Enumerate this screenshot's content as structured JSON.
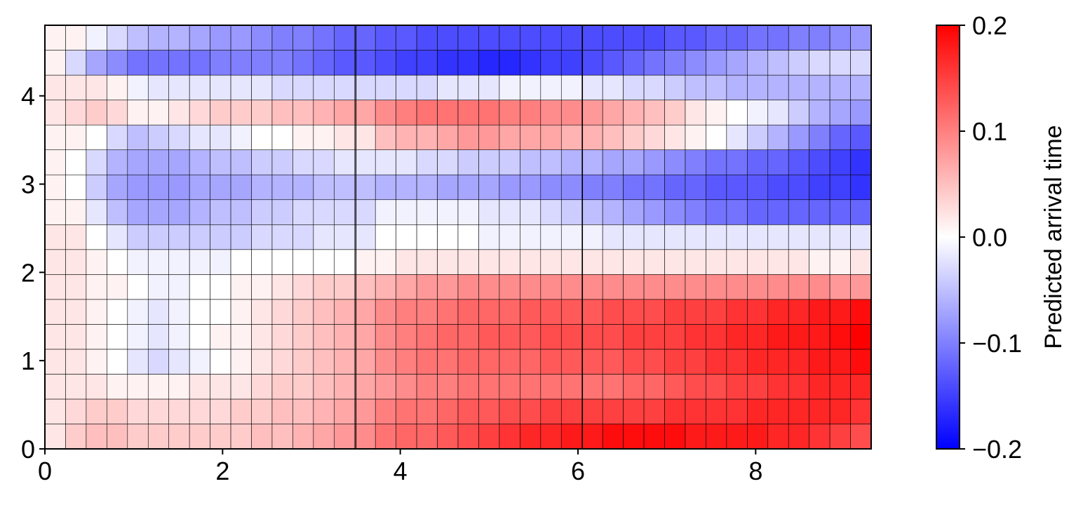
{
  "chart_data": {
    "type": "heatmap",
    "title": "",
    "xlabel": "",
    "ylabel": "",
    "xlim": [
      0,
      9.3
    ],
    "ylim": [
      0,
      4.8
    ],
    "xticks": [
      0,
      2,
      4,
      6,
      8
    ],
    "xtick_labels": [
      "0",
      "2",
      "4",
      "6",
      "8"
    ],
    "yticks": [
      0,
      1,
      2,
      3,
      4
    ],
    "ytick_labels": [
      "0",
      "1",
      "2",
      "3",
      "4"
    ],
    "ncols": 40,
    "nrows": 17,
    "grid": true,
    "panel_dividers_x": [
      3.5,
      6.05
    ],
    "colormap": "bwr",
    "colorbar": {
      "label": "Predicted arrival time",
      "min": -0.2,
      "max": 0.2,
      "ticks": [
        -0.2,
        -0.1,
        0.0,
        0.1,
        0.2
      ],
      "tick_labels": [
        "−0.2",
        "−0.1",
        "0.0",
        "0.1",
        "0.2"
      ],
      "color_low": "#0000ff",
      "color_mid": "#ffffff",
      "color_high": "#ff0000"
    },
    "values": [
      [
        0.02,
        0.04,
        0.05,
        0.05,
        0.04,
        0.04,
        0.04,
        0.04,
        0.04,
        0.04,
        0.05,
        0.05,
        0.06,
        0.07,
        0.08,
        0.09,
        0.11,
        0.12,
        0.12,
        0.13,
        0.14,
        0.15,
        0.16,
        0.17,
        0.17,
        0.18,
        0.18,
        0.19,
        0.19,
        0.19,
        0.19,
        0.18,
        0.18,
        0.18,
        0.18,
        0.17,
        0.17,
        0.16,
        0.15,
        0.14
      ],
      [
        0.02,
        0.03,
        0.04,
        0.04,
        0.03,
        0.03,
        0.03,
        0.03,
        0.03,
        0.04,
        0.04,
        0.05,
        0.05,
        0.06,
        0.07,
        0.08,
        0.1,
        0.11,
        0.11,
        0.12,
        0.13,
        0.13,
        0.14,
        0.14,
        0.15,
        0.15,
        0.15,
        0.15,
        0.15,
        0.15,
        0.16,
        0.16,
        0.16,
        0.16,
        0.17,
        0.17,
        0.17,
        0.17,
        0.17,
        0.16
      ],
      [
        0.02,
        0.02,
        0.02,
        0.01,
        0.01,
        0.01,
        0.01,
        0.02,
        0.02,
        0.02,
        0.03,
        0.04,
        0.04,
        0.05,
        0.06,
        0.07,
        0.08,
        0.09,
        0.1,
        0.1,
        0.11,
        0.11,
        0.11,
        0.11,
        0.11,
        0.11,
        0.11,
        0.11,
        0.12,
        0.12,
        0.13,
        0.14,
        0.14,
        0.15,
        0.15,
        0.16,
        0.16,
        0.17,
        0.17,
        0.17
      ],
      [
        0.02,
        0.02,
        0.01,
        0.0,
        -0.02,
        -0.03,
        -0.02,
        -0.01,
        0.0,
        0.01,
        0.02,
        0.03,
        0.04,
        0.05,
        0.06,
        0.07,
        0.09,
        0.1,
        0.11,
        0.11,
        0.12,
        0.12,
        0.12,
        0.12,
        0.13,
        0.13,
        0.13,
        0.13,
        0.14,
        0.14,
        0.15,
        0.15,
        0.16,
        0.16,
        0.17,
        0.17,
        0.17,
        0.18,
        0.18,
        0.19
      ],
      [
        0.02,
        0.02,
        0.01,
        0.0,
        -0.01,
        -0.02,
        -0.01,
        0.0,
        0.01,
        0.01,
        0.02,
        0.03,
        0.04,
        0.05,
        0.06,
        0.07,
        0.09,
        0.1,
        0.11,
        0.12,
        0.12,
        0.13,
        0.13,
        0.13,
        0.14,
        0.14,
        0.14,
        0.14,
        0.15,
        0.15,
        0.15,
        0.16,
        0.16,
        0.17,
        0.17,
        0.18,
        0.18,
        0.18,
        0.19,
        0.2
      ],
      [
        0.02,
        0.02,
        0.01,
        0.0,
        -0.01,
        -0.02,
        -0.01,
        0.0,
        0.0,
        0.01,
        0.02,
        0.03,
        0.04,
        0.05,
        0.06,
        0.07,
        0.09,
        0.1,
        0.1,
        0.11,
        0.12,
        0.12,
        0.12,
        0.13,
        0.13,
        0.13,
        0.13,
        0.14,
        0.14,
        0.14,
        0.15,
        0.15,
        0.15,
        0.16,
        0.16,
        0.17,
        0.17,
        0.18,
        0.18,
        0.19
      ],
      [
        0.02,
        0.02,
        0.01,
        0.01,
        0.0,
        -0.01,
        -0.01,
        0.0,
        0.0,
        0.01,
        0.01,
        0.02,
        0.03,
        0.04,
        0.04,
        0.05,
        0.06,
        0.07,
        0.08,
        0.08,
        0.09,
        0.09,
        0.09,
        0.09,
        0.09,
        0.09,
        0.09,
        0.09,
        0.09,
        0.09,
        0.09,
        0.09,
        0.09,
        0.09,
        0.09,
        0.09,
        0.09,
        0.09,
        0.08,
        0.08
      ],
      [
        0.02,
        0.02,
        0.01,
        0.0,
        -0.01,
        -0.01,
        -0.01,
        -0.01,
        -0.01,
        0.0,
        0.0,
        0.0,
        0.0,
        0.0,
        0.0,
        0.01,
        0.01,
        0.02,
        0.02,
        0.02,
        0.02,
        0.02,
        0.02,
        0.02,
        0.02,
        0.02,
        0.02,
        0.02,
        0.02,
        0.02,
        0.02,
        0.02,
        0.02,
        0.02,
        0.02,
        0.02,
        0.02,
        0.01,
        0.01,
        0.02
      ],
      [
        0.02,
        0.02,
        0.0,
        -0.02,
        -0.04,
        -0.04,
        -0.04,
        -0.04,
        -0.04,
        -0.04,
        -0.03,
        -0.03,
        -0.03,
        -0.02,
        -0.02,
        -0.02,
        0.0,
        0.0,
        0.0,
        0.0,
        0.0,
        -0.01,
        -0.01,
        -0.01,
        -0.01,
        -0.01,
        -0.01,
        -0.02,
        -0.02,
        -0.02,
        -0.02,
        -0.02,
        -0.02,
        -0.02,
        -0.02,
        -0.02,
        -0.02,
        -0.02,
        -0.02,
        -0.02
      ],
      [
        0.01,
        0.01,
        -0.02,
        -0.05,
        -0.07,
        -0.07,
        -0.07,
        -0.06,
        -0.05,
        -0.05,
        -0.04,
        -0.04,
        -0.03,
        -0.03,
        -0.03,
        -0.03,
        -0.01,
        -0.01,
        -0.01,
        -0.01,
        -0.01,
        -0.02,
        -0.02,
        -0.02,
        -0.03,
        -0.04,
        -0.05,
        -0.06,
        -0.07,
        -0.08,
        -0.09,
        -0.1,
        -0.11,
        -0.11,
        -0.12,
        -0.12,
        -0.12,
        -0.12,
        -0.12,
        -0.12
      ],
      [
        0.01,
        0.0,
        -0.04,
        -0.07,
        -0.08,
        -0.08,
        -0.08,
        -0.07,
        -0.07,
        -0.07,
        -0.06,
        -0.06,
        -0.06,
        -0.05,
        -0.05,
        -0.05,
        -0.06,
        -0.06,
        -0.06,
        -0.07,
        -0.07,
        -0.07,
        -0.08,
        -0.08,
        -0.09,
        -0.09,
        -0.1,
        -0.1,
        -0.11,
        -0.11,
        -0.12,
        -0.12,
        -0.13,
        -0.13,
        -0.13,
        -0.14,
        -0.14,
        -0.15,
        -0.15,
        -0.16
      ],
      [
        0.01,
        0.0,
        -0.03,
        -0.06,
        -0.07,
        -0.07,
        -0.07,
        -0.06,
        -0.05,
        -0.05,
        -0.04,
        -0.04,
        -0.03,
        -0.03,
        -0.02,
        -0.02,
        -0.02,
        -0.02,
        -0.03,
        -0.03,
        -0.04,
        -0.04,
        -0.04,
        -0.05,
        -0.05,
        -0.06,
        -0.06,
        -0.07,
        -0.07,
        -0.08,
        -0.09,
        -0.1,
        -0.11,
        -0.11,
        -0.12,
        -0.12,
        -0.13,
        -0.14,
        -0.15,
        -0.16
      ],
      [
        0.01,
        0.01,
        0.0,
        -0.03,
        -0.05,
        -0.04,
        -0.03,
        -0.02,
        -0.02,
        -0.01,
        0.0,
        0.0,
        0.01,
        0.01,
        0.02,
        0.02,
        0.05,
        0.06,
        0.06,
        0.07,
        0.08,
        0.08,
        0.07,
        0.07,
        0.07,
        0.06,
        0.06,
        0.05,
        0.04,
        0.03,
        0.02,
        0.01,
        0.0,
        -0.02,
        -0.04,
        -0.06,
        -0.08,
        -0.1,
        -0.12,
        -0.13
      ],
      [
        0.02,
        0.03,
        0.04,
        0.03,
        0.01,
        0.01,
        0.02,
        0.03,
        0.04,
        0.04,
        0.04,
        0.05,
        0.05,
        0.06,
        0.07,
        0.07,
        0.09,
        0.1,
        0.11,
        0.11,
        0.11,
        0.11,
        0.1,
        0.1,
        0.09,
        0.09,
        0.08,
        0.07,
        0.06,
        0.05,
        0.04,
        0.02,
        0.01,
        0.0,
        -0.01,
        -0.02,
        -0.04,
        -0.06,
        -0.07,
        -0.08
      ],
      [
        0.02,
        0.02,
        0.02,
        0.01,
        -0.01,
        -0.02,
        -0.02,
        -0.02,
        -0.02,
        -0.02,
        -0.02,
        -0.03,
        -0.03,
        -0.03,
        -0.03,
        -0.03,
        -0.03,
        -0.03,
        -0.03,
        -0.02,
        -0.02,
        -0.02,
        -0.01,
        -0.01,
        -0.01,
        -0.01,
        -0.02,
        -0.02,
        -0.03,
        -0.03,
        -0.04,
        -0.05,
        -0.05,
        -0.06,
        -0.06,
        -0.06,
        -0.06,
        -0.06,
        -0.06,
        -0.06
      ],
      [
        0.01,
        -0.03,
        -0.07,
        -0.09,
        -0.11,
        -0.11,
        -0.11,
        -0.11,
        -0.1,
        -0.1,
        -0.1,
        -0.1,
        -0.11,
        -0.12,
        -0.13,
        -0.13,
        -0.14,
        -0.15,
        -0.15,
        -0.16,
        -0.16,
        -0.17,
        -0.17,
        -0.16,
        -0.15,
        -0.15,
        -0.14,
        -0.13,
        -0.12,
        -0.11,
        -0.1,
        -0.09,
        -0.08,
        -0.07,
        -0.06,
        -0.05,
        -0.04,
        -0.03,
        -0.03,
        -0.03
      ],
      [
        0.01,
        0.01,
        -0.01,
        -0.03,
        -0.05,
        -0.06,
        -0.06,
        -0.07,
        -0.08,
        -0.08,
        -0.09,
        -0.1,
        -0.1,
        -0.11,
        -0.12,
        -0.12,
        -0.13,
        -0.13,
        -0.14,
        -0.14,
        -0.14,
        -0.14,
        -0.14,
        -0.14,
        -0.14,
        -0.14,
        -0.14,
        -0.14,
        -0.14,
        -0.14,
        -0.13,
        -0.13,
        -0.12,
        -0.12,
        -0.11,
        -0.11,
        -0.1,
        -0.1,
        -0.09,
        -0.08
      ]
    ]
  }
}
